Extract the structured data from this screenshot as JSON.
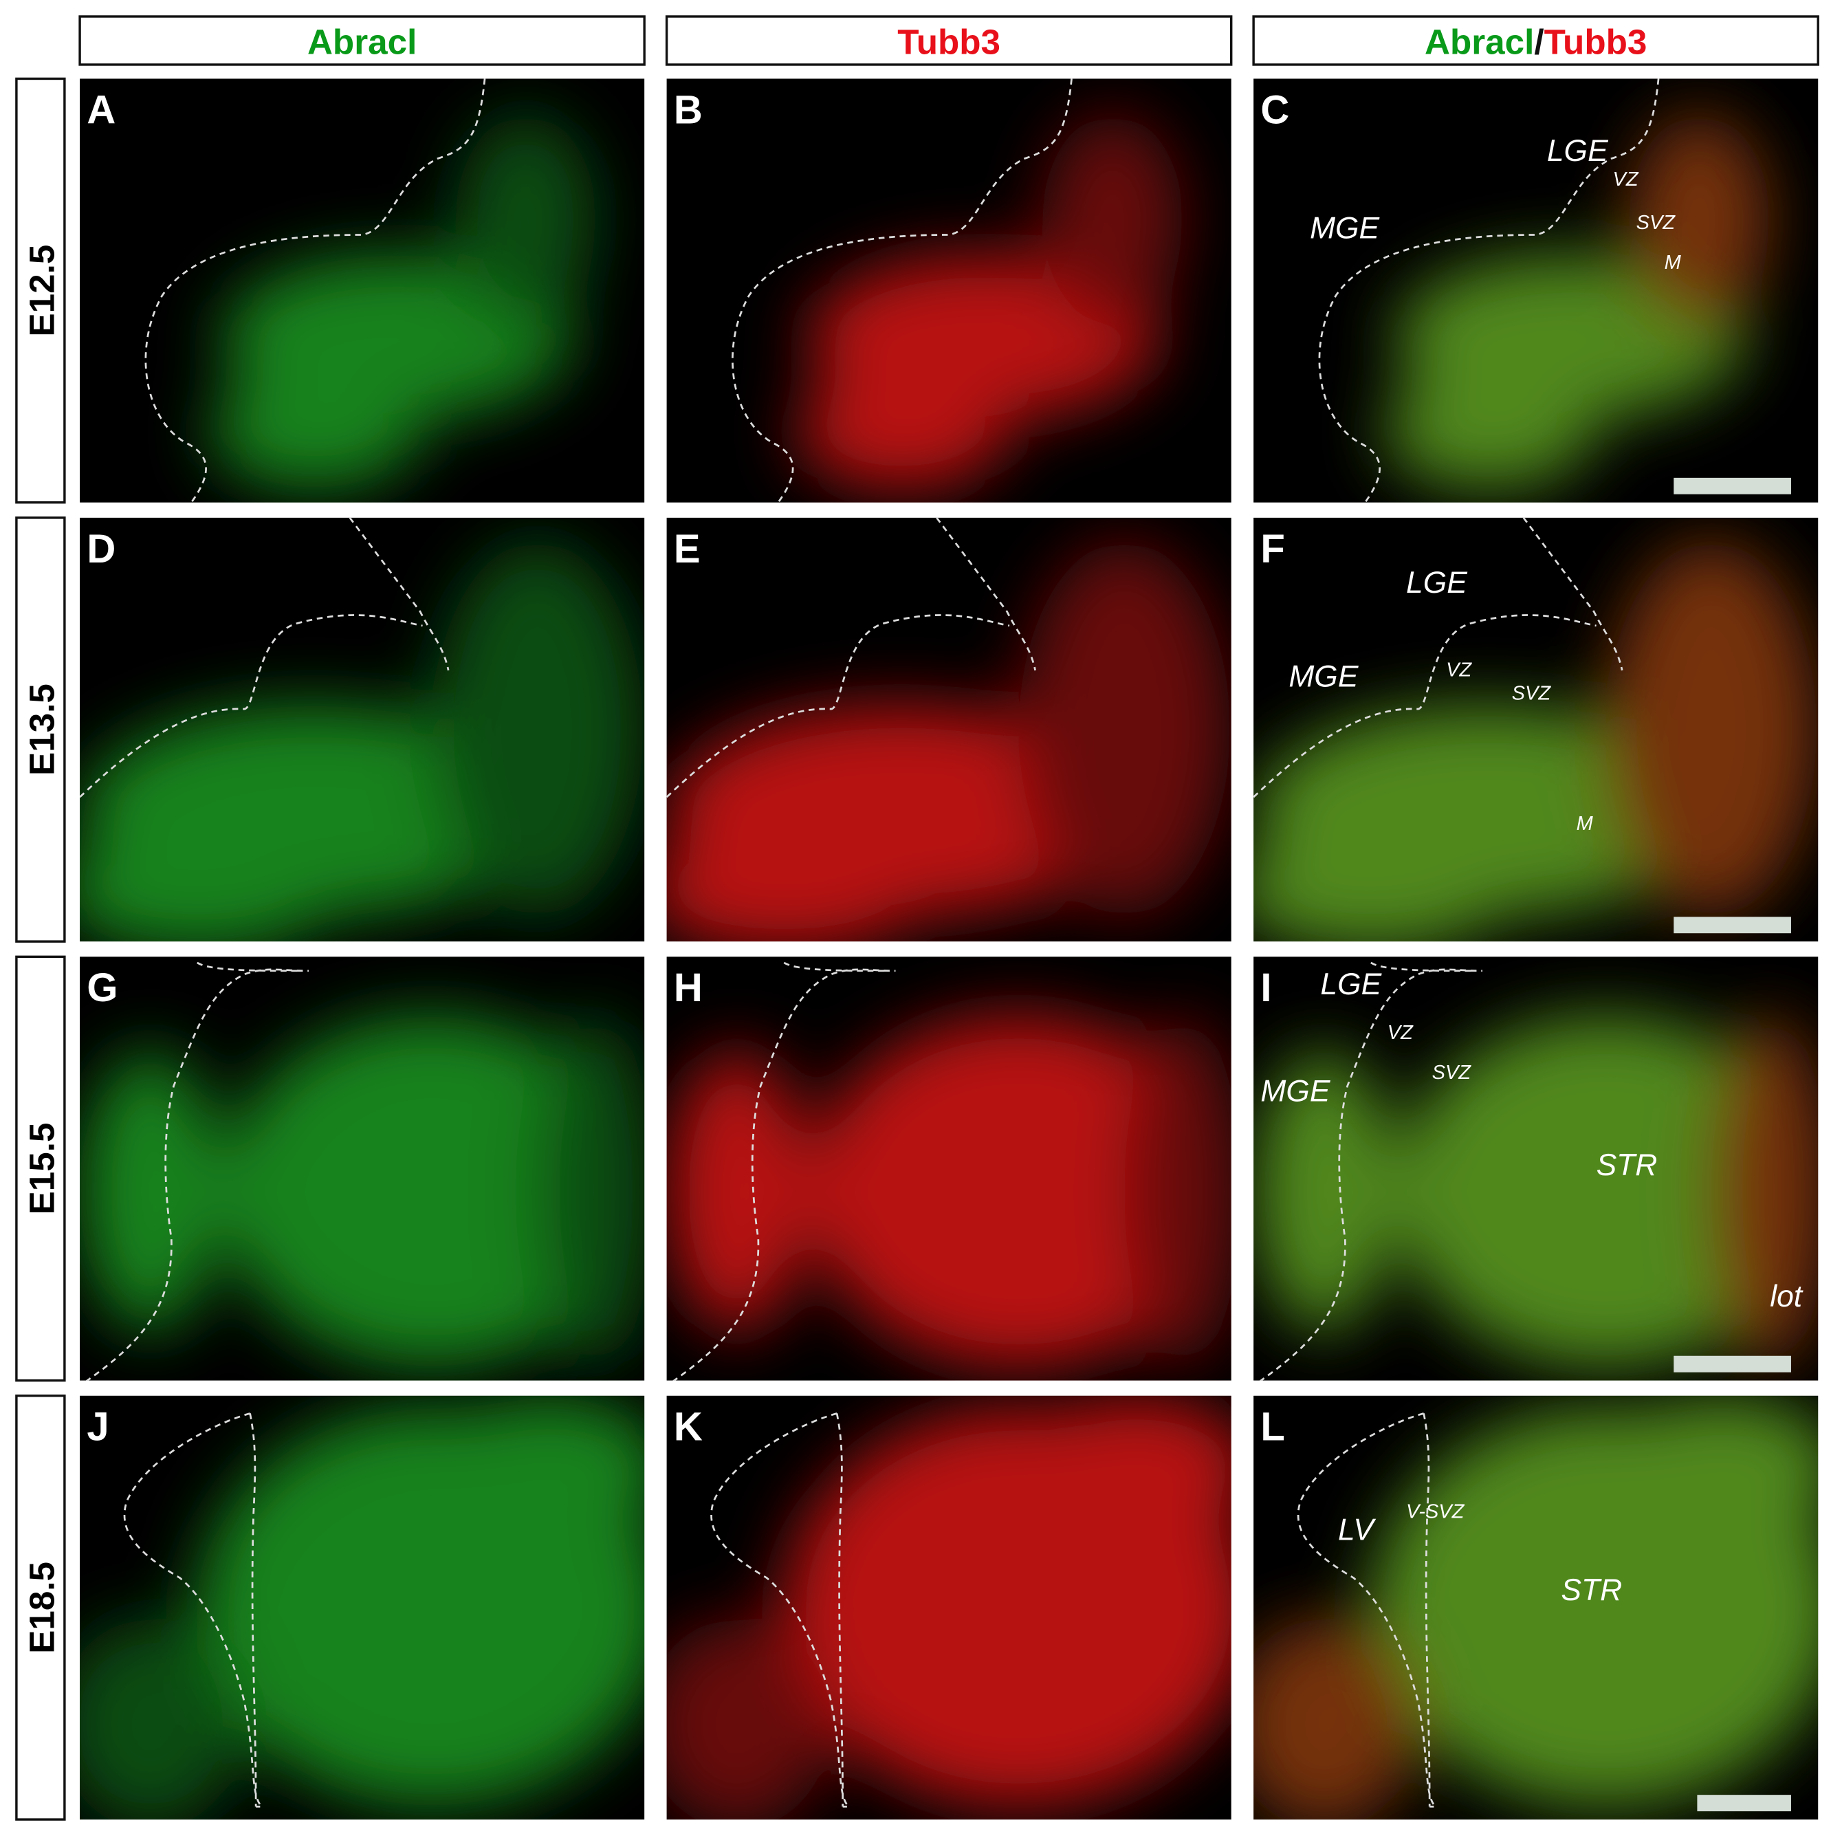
{
  "headers": [
    [
      "Abracl"
    ],
    [
      "Tubb3"
    ],
    [
      "Abracl",
      "/",
      "Tubb3"
    ]
  ],
  "rows": [
    {
      "label": "E12.5",
      "panels": [
        {
          "letter": "A",
          "annotations": []
        },
        {
          "letter": "B",
          "annotations": []
        },
        {
          "letter": "C",
          "annotations": [
            "LGE",
            "VZ",
            "MGE",
            "SVZ",
            "M"
          ]
        }
      ]
    },
    {
      "label": "E13.5",
      "panels": [
        {
          "letter": "D",
          "annotations": []
        },
        {
          "letter": "E",
          "annotations": []
        },
        {
          "letter": "F",
          "annotations": [
            "LGE",
            "MGE",
            "VZ",
            "SVZ",
            "M"
          ]
        }
      ]
    },
    {
      "label": "E15.5",
      "panels": [
        {
          "letter": "G",
          "annotations": []
        },
        {
          "letter": "H",
          "annotations": []
        },
        {
          "letter": "I",
          "annotations": [
            "LGE",
            "VZ",
            "MGE",
            "SVZ",
            "STR",
            "lot"
          ]
        }
      ]
    },
    {
      "label": "E18.5",
      "panels": [
        {
          "letter": "J",
          "annotations": []
        },
        {
          "letter": "K",
          "annotations": []
        },
        {
          "letter": "L",
          "annotations": [
            "LV",
            "V-SVZ",
            "STR"
          ]
        }
      ]
    }
  ]
}
